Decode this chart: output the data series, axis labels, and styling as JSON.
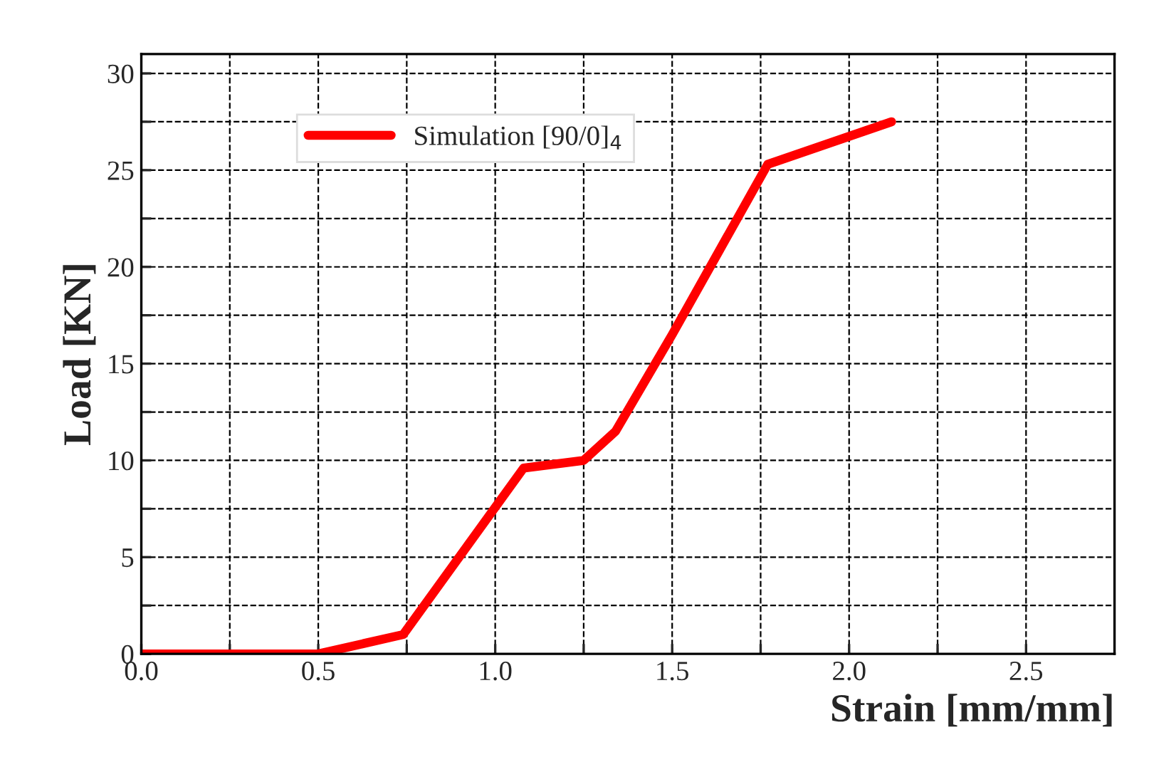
{
  "chart_data": {
    "type": "line",
    "xlabel": "Strain [mm/mm]",
    "ylabel": "Load [KN]",
    "series": [
      {
        "name": "Simulation [90/0]$_{4}$",
        "color": "#ff0000",
        "x": [
          0,
          0.5,
          0.74,
          1.08,
          1.25,
          1.34,
          1.5,
          1.77,
          2.12
        ],
        "values": [
          0,
          0,
          1.0,
          9.6,
          10,
          11.5,
          16.5,
          25.3,
          27.5
        ]
      }
    ],
    "xlim": [
      0,
      2.75
    ],
    "ylim": [
      0,
      31
    ],
    "xticks": [
      {
        "value": 0,
        "label": "0.0"
      },
      {
        "value": 0.25,
        "label": null
      },
      {
        "value": 0.5,
        "label": "0.5"
      },
      {
        "value": 0.75,
        "label": null
      },
      {
        "value": 1.0,
        "label": "1.0"
      },
      {
        "value": 1.25,
        "label": null
      },
      {
        "value": 1.5,
        "label": "1.5"
      },
      {
        "value": 1.75,
        "label": null
      },
      {
        "value": 2.0,
        "label": "2.0"
      },
      {
        "value": 2.25,
        "label": null
      },
      {
        "value": 2.5,
        "label": "2.5"
      }
    ],
    "yticks": [
      0,
      {
        "value": 2.5,
        "label": null
      },
      5,
      {
        "value": 7.5,
        "label": null
      },
      10,
      {
        "value": 12.5,
        "label": null
      },
      15,
      {
        "value": 17.5,
        "label": null
      },
      20,
      {
        "value": 22.5,
        "label": null
      },
      25,
      {
        "value": 27.5,
        "label": null
      },
      30
    ],
    "grid": true,
    "legend": "top left",
    "marker": "none",
    "line_style": "solid"
  }
}
